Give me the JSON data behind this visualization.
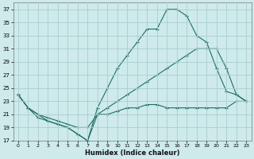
{
  "xlabel": "Humidex (Indice chaleur)",
  "bg_color": "#ceeaea",
  "grid_color": "#aacece",
  "line_color": "#1e6e64",
  "xlim": [
    0,
    23
  ],
  "ylim": [
    17,
    38
  ],
  "xticks": [
    0,
    1,
    2,
    3,
    4,
    5,
    6,
    7,
    8,
    9,
    10,
    11,
    12,
    13,
    14,
    15,
    16,
    17,
    18,
    19,
    20,
    21,
    22,
    23
  ],
  "yticks": [
    17,
    19,
    21,
    23,
    25,
    27,
    29,
    31,
    33,
    35,
    37
  ],
  "line1_x": [
    0,
    1,
    2,
    3,
    4,
    5,
    6,
    7,
    8,
    9,
    10,
    11,
    12,
    13,
    14,
    15,
    16,
    17,
    18,
    19,
    20,
    21,
    22,
    23
  ],
  "line1_y": [
    24,
    22,
    20.5,
    20,
    19.5,
    19,
    18,
    17,
    21,
    21,
    21.5,
    22,
    22,
    22.5,
    22.5,
    22,
    22,
    22,
    22,
    22,
    22,
    22,
    23,
    23
  ],
  "line2_x": [
    0,
    1,
    2,
    3,
    4,
    5,
    6,
    7,
    8,
    9,
    10,
    11,
    12,
    13,
    14,
    15,
    16,
    17,
    18,
    19,
    20,
    21,
    22,
    23
  ],
  "line2_y": [
    24,
    22,
    21,
    20.5,
    20,
    19.5,
    19,
    19,
    21,
    22,
    23,
    24,
    25,
    26,
    27,
    28,
    29,
    30,
    31,
    31,
    31,
    28,
    24,
    23
  ],
  "line3_x": [
    0,
    1,
    2,
    3,
    4,
    5,
    6,
    7,
    8,
    9,
    10,
    11,
    12,
    13,
    14,
    15,
    16,
    17,
    18,
    19,
    20,
    21,
    22,
    23
  ],
  "line3_y": [
    24,
    22,
    21,
    20,
    19.5,
    19,
    18,
    17,
    22,
    25,
    28,
    30,
    32,
    34,
    34,
    37,
    37,
    36,
    33,
    32,
    28,
    24.5,
    24,
    23
  ]
}
